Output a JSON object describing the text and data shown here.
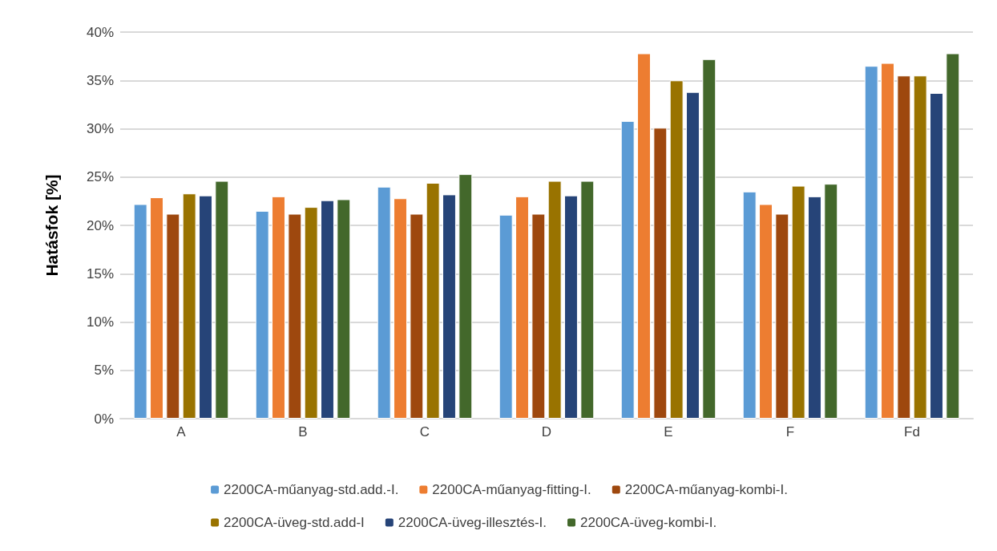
{
  "chart_data": {
    "type": "bar",
    "ylabel": "Hatásfok [%]",
    "categories": [
      "A",
      "B",
      "C",
      "D",
      "E",
      "F",
      "Fd"
    ],
    "series": [
      {
        "name": "2200CA-műanyag-std.add.-I.",
        "color": "#5b9bd5",
        "values": [
          22.2,
          21.5,
          24.0,
          21.1,
          30.8,
          23.5,
          36.5
        ]
      },
      {
        "name": "2200CA-műanyag-fitting-I.",
        "color": "#ed7d31",
        "values": [
          22.9,
          23.0,
          22.8,
          23.0,
          37.8,
          22.2,
          36.8
        ]
      },
      {
        "name": "2200CA-műanyag-kombi-I.",
        "color": "#9e480e",
        "values": [
          21.2,
          21.2,
          21.2,
          21.2,
          30.1,
          21.2,
          35.5
        ]
      },
      {
        "name": "2200CA-üveg-std.add-I",
        "color": "#997300",
        "values": [
          23.3,
          21.9,
          24.4,
          24.6,
          35.0,
          24.1,
          35.5
        ]
      },
      {
        "name": "2200CA-üveg-illesztés-I.",
        "color": "#264478",
        "values": [
          23.1,
          22.6,
          23.2,
          23.1,
          33.8,
          23.0,
          33.7
        ]
      },
      {
        "name": "2200CA-üveg-kombi-I.",
        "color": "#43682b",
        "values": [
          24.6,
          22.7,
          25.3,
          24.6,
          37.2,
          24.3,
          37.8
        ]
      }
    ],
    "ylim": [
      0,
      40
    ],
    "yticks": [
      {
        "value": 0,
        "label": "0%"
      },
      {
        "value": 5,
        "label": "5%"
      },
      {
        "value": 10,
        "label": "10%"
      },
      {
        "value": 15,
        "label": "15%"
      },
      {
        "value": 20,
        "label": "20%"
      },
      {
        "value": 25,
        "label": "25%"
      },
      {
        "value": 30,
        "label": "30%"
      },
      {
        "value": 35,
        "label": "35%"
      },
      {
        "value": 40,
        "label": "40%"
      }
    ],
    "grid": "y",
    "legend": "bottom"
  }
}
